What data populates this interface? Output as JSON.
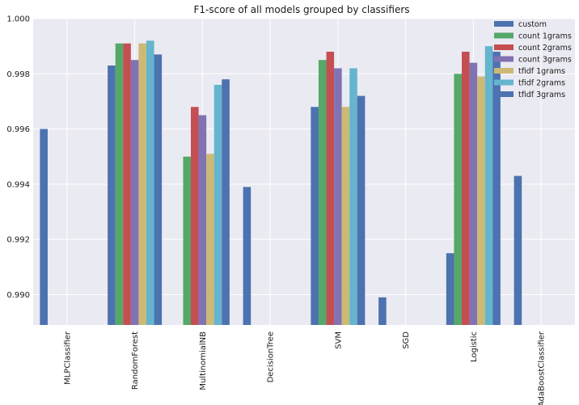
{
  "chart_data": {
    "type": "bar",
    "title": "F1-score of all models grouped by classifiers",
    "xlabel": "",
    "ylabel": "",
    "ylim": [
      0.9889,
      1.0
    ],
    "yticks": [
      0.99,
      0.992,
      0.994,
      0.996,
      0.998,
      1.0
    ],
    "ytick_labels": [
      "0.990",
      "0.992",
      "0.994",
      "0.996",
      "0.998",
      "1.000"
    ],
    "grid": true,
    "legend_position": "top-right",
    "categories": [
      "MLPClassifier",
      "RandomForest",
      "MultinomialNB",
      "DecisionTree",
      "SVM",
      "SGD",
      "Logistic",
      "AdaBoostClassifier"
    ],
    "series": [
      {
        "name": "custom",
        "color": "#4c72b0",
        "values": [
          0.996,
          0.9983,
          null,
          0.9939,
          0.9968,
          0.9899,
          0.9915,
          0.9943
        ]
      },
      {
        "name": "count 1grams",
        "color": "#55a868",
        "values": [
          null,
          0.9991,
          0.995,
          null,
          0.9985,
          null,
          0.998,
          null
        ]
      },
      {
        "name": "count 2grams",
        "color": "#c44e52",
        "values": [
          null,
          0.9991,
          0.9968,
          null,
          0.9988,
          null,
          0.9988,
          null
        ]
      },
      {
        "name": "count 3grams",
        "color": "#8172b2",
        "values": [
          null,
          0.9985,
          0.9965,
          null,
          0.9982,
          null,
          0.9984,
          null
        ]
      },
      {
        "name": "tfidf 1grams",
        "color": "#ccb974",
        "values": [
          null,
          0.9991,
          0.9951,
          null,
          0.9968,
          null,
          0.9979,
          null
        ]
      },
      {
        "name": "tfidf 2grams",
        "color": "#64b5cd",
        "values": [
          null,
          0.9992,
          0.9976,
          null,
          0.9982,
          null,
          0.999,
          null
        ]
      },
      {
        "name": "tfidf 3grams",
        "color": "#4c72b0",
        "values": [
          null,
          0.9987,
          0.9978,
          null,
          0.9972,
          null,
          0.9988,
          null
        ]
      }
    ],
    "colors": {
      "plot_background": "#eaeaf2",
      "grid": "#ffffff"
    }
  }
}
